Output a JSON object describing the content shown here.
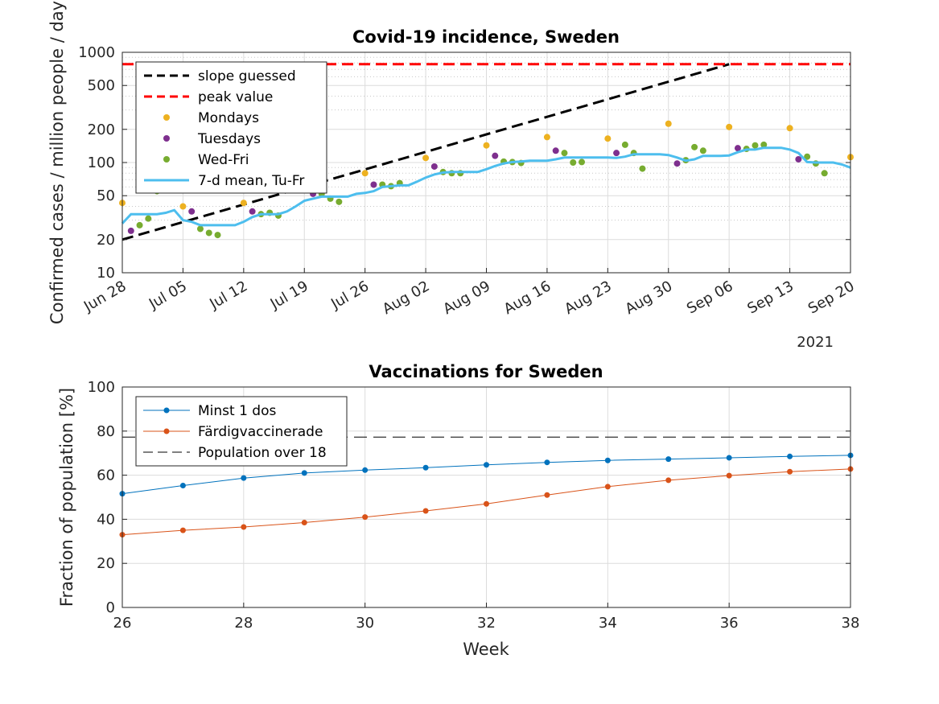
{
  "chart_data": [
    {
      "type": "line",
      "title": "Covid-19 incidence, Sweden",
      "ylabel": "Confirmed cases / million people / day",
      "xlabel": "",
      "yscale": "log",
      "ylim": [
        10,
        1000
      ],
      "yticks": [
        10,
        20,
        50,
        100,
        200,
        500,
        1000
      ],
      "ytick_labels": [
        "10",
        "20",
        "50",
        "100",
        "200",
        "500",
        "1000"
      ],
      "xlim": [
        "2021-06-28",
        "2021-09-20"
      ],
      "xtick_dates": [
        "2021-06-28",
        "2021-07-05",
        "2021-07-12",
        "2021-07-19",
        "2021-07-26",
        "2021-08-02",
        "2021-08-09",
        "2021-08-16",
        "2021-08-23",
        "2021-08-30",
        "2021-09-06",
        "2021-09-13",
        "2021-09-20"
      ],
      "xtick_labels": [
        "Jun 28",
        "Jul 05",
        "Jul 12",
        "Jul 19",
        "Jul 26",
        "Aug 02",
        "Aug 09",
        "Aug 16",
        "Aug 23",
        "Aug 30",
        "Sep 06",
        "Sep 13",
        "Sep 20"
      ],
      "year_label": "2021",
      "grid": true,
      "legend_position": "top-left",
      "series": [
        {
          "name": "slope guessed",
          "color": "#000000",
          "style": "dashed",
          "width": 3,
          "x": [
            "2021-06-28",
            "2021-09-06"
          ],
          "y": [
            20,
            780
          ]
        },
        {
          "name": "peak value",
          "color": "#ff0000",
          "style": "dashed",
          "width": 3,
          "x": [
            "2021-06-28",
            "2021-09-20"
          ],
          "y": [
            780,
            780
          ]
        },
        {
          "name": "Mondays",
          "color": "#edb120",
          "style": "markers",
          "x": [
            "2021-06-28",
            "2021-07-05",
            "2021-07-12",
            "2021-07-26",
            "2021-08-02",
            "2021-08-09",
            "2021-08-16",
            "2021-08-23",
            "2021-08-30",
            "2021-09-06",
            "2021-09-13",
            "2021-09-20"
          ],
          "y": [
            43,
            40,
            43,
            80,
            110,
            143,
            170,
            165,
            225,
            210,
            205,
            112
          ]
        },
        {
          "name": "Tuesdays",
          "color": "#7e2f8e",
          "style": "markers",
          "x": [
            "2021-06-29",
            "2021-07-06",
            "2021-07-13",
            "2021-07-20",
            "2021-07-27",
            "2021-08-03",
            "2021-08-10",
            "2021-08-17",
            "2021-08-24",
            "2021-08-31",
            "2021-09-07",
            "2021-09-14"
          ],
          "y": [
            24,
            36,
            36,
            52,
            63,
            92,
            115,
            128,
            122,
            98,
            135,
            107
          ]
        },
        {
          "name": "Wed-Fri",
          "color": "#77ac30",
          "style": "markers",
          "x": [
            "2021-06-30",
            "2021-07-01",
            "2021-07-02",
            "2021-07-07",
            "2021-07-08",
            "2021-07-09",
            "2021-07-14",
            "2021-07-15",
            "2021-07-16",
            "2021-07-21",
            "2021-07-22",
            "2021-07-23",
            "2021-07-28",
            "2021-07-29",
            "2021-07-30",
            "2021-08-04",
            "2021-08-05",
            "2021-08-06",
            "2021-08-11",
            "2021-08-12",
            "2021-08-13",
            "2021-08-18",
            "2021-08-19",
            "2021-08-20",
            "2021-08-25",
            "2021-08-26",
            "2021-08-27",
            "2021-09-01",
            "2021-09-02",
            "2021-09-03",
            "2021-09-08",
            "2021-09-09",
            "2021-09-10",
            "2021-09-15",
            "2021-09-16",
            "2021-09-17"
          ],
          "y": [
            27,
            31,
            55,
            25,
            23,
            22,
            34,
            35,
            33,
            52,
            47,
            44,
            63,
            61,
            65,
            82,
            80,
            80,
            102,
            101,
            99,
            122,
            100,
            101,
            145,
            122,
            88,
            105,
            138,
            128,
            133,
            143,
            145,
            113,
            98,
            80
          ]
        },
        {
          "name": "7-d mean, Tu-Fr",
          "color": "#4dbeee",
          "style": "solid",
          "width": 3,
          "x": [
            "2021-06-28",
            "2021-06-29",
            "2021-06-30",
            "2021-07-01",
            "2021-07-02",
            "2021-07-03",
            "2021-07-04",
            "2021-07-05",
            "2021-07-06",
            "2021-07-07",
            "2021-07-08",
            "2021-07-09",
            "2021-07-10",
            "2021-07-11",
            "2021-07-12",
            "2021-07-13",
            "2021-07-14",
            "2021-07-15",
            "2021-07-16",
            "2021-07-17",
            "2021-07-18",
            "2021-07-19",
            "2021-07-20",
            "2021-07-21",
            "2021-07-22",
            "2021-07-23",
            "2021-07-24",
            "2021-07-25",
            "2021-07-26",
            "2021-07-27",
            "2021-07-28",
            "2021-07-29",
            "2021-07-30",
            "2021-07-31",
            "2021-08-01",
            "2021-08-02",
            "2021-08-03",
            "2021-08-04",
            "2021-08-05",
            "2021-08-06",
            "2021-08-07",
            "2021-08-08",
            "2021-08-09",
            "2021-08-10",
            "2021-08-11",
            "2021-08-12",
            "2021-08-13",
            "2021-08-14",
            "2021-08-15",
            "2021-08-16",
            "2021-08-17",
            "2021-08-18",
            "2021-08-19",
            "2021-08-20",
            "2021-08-21",
            "2021-08-22",
            "2021-08-23",
            "2021-08-24",
            "2021-08-25",
            "2021-08-26",
            "2021-08-27",
            "2021-08-28",
            "2021-08-29",
            "2021-08-30",
            "2021-08-31",
            "2021-09-01",
            "2021-09-02",
            "2021-09-03",
            "2021-09-04",
            "2021-09-05",
            "2021-09-06",
            "2021-09-07",
            "2021-09-08",
            "2021-09-09",
            "2021-09-10",
            "2021-09-11",
            "2021-09-12",
            "2021-09-13",
            "2021-09-14",
            "2021-09-15",
            "2021-09-16",
            "2021-09-17",
            "2021-09-18",
            "2021-09-19",
            "2021-09-20"
          ],
          "y": [
            28,
            34,
            34,
            34,
            34,
            35,
            37,
            30,
            29,
            27,
            27,
            27,
            27,
            27,
            29,
            32,
            34,
            34,
            34,
            36,
            40,
            45,
            47,
            49,
            49,
            49,
            49,
            52,
            53,
            55,
            60,
            61,
            62,
            62,
            67,
            73,
            78,
            81,
            82,
            82,
            82,
            82,
            87,
            93,
            98,
            101,
            102,
            104,
            104,
            104,
            107,
            111,
            111,
            111,
            111,
            111,
            111,
            110,
            113,
            119,
            119,
            119,
            119,
            117,
            111,
            104,
            107,
            115,
            115,
            115,
            116,
            124,
            131,
            131,
            136,
            136,
            136,
            131,
            122,
            101,
            100,
            100,
            100,
            96,
            90
          ]
        }
      ]
    },
    {
      "type": "line",
      "title": "Vaccinations for Sweden",
      "xlabel": "Week",
      "ylabel": "Fraction of population [%]",
      "xlim": [
        26,
        38
      ],
      "ylim": [
        0,
        100
      ],
      "xticks": [
        26,
        28,
        30,
        32,
        34,
        36,
        38
      ],
      "yticks": [
        0,
        20,
        40,
        60,
        80,
        100
      ],
      "grid": true,
      "legend_position": "top-left",
      "series": [
        {
          "name": "Minst 1 dos",
          "color": "#0072bd",
          "style": "solid-markers",
          "x": [
            26,
            27,
            28,
            29,
            30,
            31,
            32,
            33,
            34,
            35,
            36,
            37,
            38
          ],
          "y": [
            51.6,
            55.3,
            58.7,
            61.0,
            62.3,
            63.4,
            64.7,
            65.8,
            66.7,
            67.3,
            67.9,
            68.5,
            69.0
          ]
        },
        {
          "name": "Färdigvaccinerade",
          "color": "#d95319",
          "style": "solid-markers",
          "x": [
            26,
            27,
            28,
            29,
            30,
            31,
            32,
            33,
            34,
            35,
            36,
            37,
            38
          ],
          "y": [
            33.0,
            35.0,
            36.5,
            38.5,
            41.0,
            43.8,
            47.0,
            51.0,
            54.8,
            57.7,
            59.8,
            61.6,
            62.8
          ]
        },
        {
          "name": "Population over 18",
          "color": "#000000",
          "style": "dashed-thin",
          "x": [
            26,
            38
          ],
          "y": [
            77.3,
            77.3
          ]
        }
      ]
    }
  ]
}
